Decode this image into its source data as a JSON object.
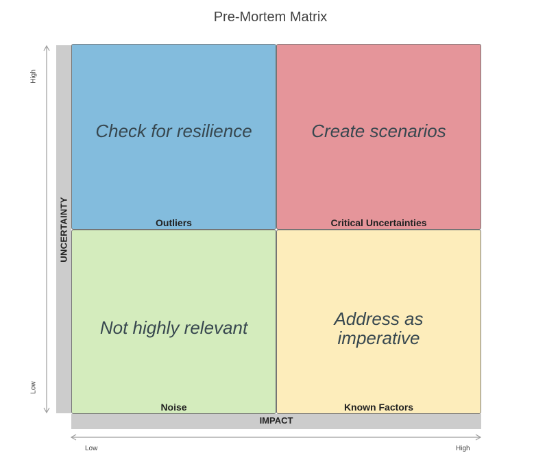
{
  "title": "Pre-Mortem Matrix",
  "quadrants": {
    "top_left": {
      "text": "Check for resilience",
      "label": "Outliers",
      "color": "#83bcdd"
    },
    "top_right": {
      "text": "Create scenarios",
      "label": "Critical Uncertainties",
      "color": "#e5959a"
    },
    "bottom_left": {
      "text": "Not highly relevant",
      "label": "Noise",
      "color": "#d4ecbd"
    },
    "bottom_right": {
      "text": "Address as imperative",
      "label": "Known Factors",
      "color": "#fdedbb"
    }
  },
  "axes": {
    "x": {
      "title": "IMPACT",
      "low": "Low",
      "high": "High"
    },
    "y": {
      "title": "UNCERTAINTY",
      "low": "Low",
      "high": "High"
    }
  }
}
